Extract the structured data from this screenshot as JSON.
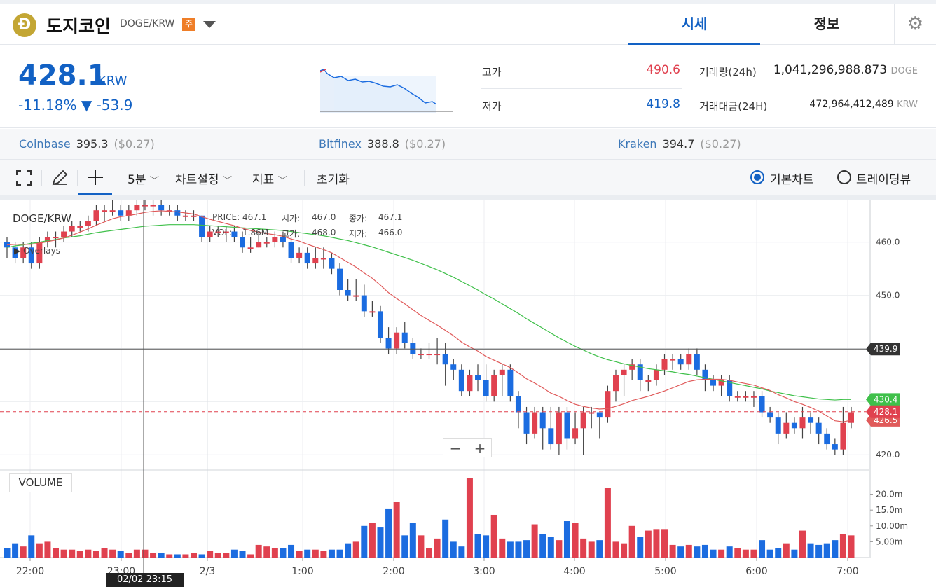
{
  "header": {
    "coin_logo": "Ð",
    "coin_name": "도지코인",
    "pair": "DOGE/KRW",
    "badge": "주",
    "tabs": [
      {
        "label": "시세"
      },
      {
        "label": "정보"
      }
    ],
    "gear_icon": "gear-icon"
  },
  "price": {
    "current": "428.1",
    "unit": "KRW",
    "change_pct": "-11.18%",
    "change_arrow": "▼",
    "change_abs": "-53.9",
    "high_label": "고가",
    "high_value": "490.6",
    "low_label": "저가",
    "low_value": "419.8",
    "volume_label": "거래량(24h)",
    "volume_value": "1,041,296,988.873",
    "volume_unit": "DOGE",
    "amount_label": "거래대금(24H)",
    "amount_value": "472,964,412,489",
    "amount_unit": "KRW"
  },
  "exchanges": [
    {
      "name": "Coinbase",
      "price": "395.3",
      "usd": "($0.27)"
    },
    {
      "name": "Bitfinex",
      "price": "388.8",
      "usd": "($0.27)"
    },
    {
      "name": "Kraken",
      "price": "394.7",
      "usd": "($0.27)"
    }
  ],
  "toolbar": {
    "interval": "5분",
    "chart_settings": "차트설정",
    "indicators": "지표",
    "reset": "초기화",
    "basic_chart": "기본차트",
    "tradingview": "트레이딩뷰"
  },
  "chart": {
    "symbol": "DOGE/KRW",
    "overlays": "Overlays",
    "legend": {
      "price_label": "PRICE:",
      "price": "467.1",
      "open_label": "시가:",
      "open": "467.0",
      "close_label": "종가:",
      "close": "467.1",
      "vol_label": "VOL:",
      "vol": "1.86M",
      "high_label": "고가:",
      "high": "468.0",
      "low_label": "저가:",
      "low": "466.0"
    },
    "zoom_out": "−",
    "zoom_in": "+",
    "volume_label": "VOLUME",
    "crosshair_time": "02/02 23:15",
    "colors": {
      "up": "#e0414f",
      "down": "#1b6ce0",
      "ma_short": "#e05a5a",
      "ma_long": "#3fc04a"
    }
  },
  "chart_data": {
    "type": "candlestick",
    "x_ticks": [
      "22:00",
      "23:00",
      "2/3",
      "1:00",
      "2:00",
      "3:00",
      "4:00",
      "5:00",
      "6:00",
      "7:00"
    ],
    "y_ticks": [
      "460.0",
      "450.0",
      "439.9",
      "430.4",
      "428.1",
      "426.5",
      "420.0"
    ],
    "volume_ticks": [
      "20.0m",
      "15.0m",
      "10.00m",
      "5.00m"
    ],
    "price_range": [
      417,
      468
    ],
    "price_labels": {
      "crosshair": "439.9",
      "ma_long": "430.4",
      "current": "428.1",
      "ma_short": "426.5"
    },
    "candles": [
      [
        460,
        459,
        461,
        457
      ],
      [
        459,
        457,
        460,
        456
      ],
      [
        457,
        459,
        460,
        456
      ],
      [
        459,
        456,
        460,
        455
      ],
      [
        456,
        460,
        461,
        455
      ],
      [
        460,
        461,
        462,
        459
      ],
      [
        461,
        461,
        462,
        459
      ],
      [
        461,
        462,
        463,
        460
      ],
      [
        462,
        463,
        464,
        461
      ],
      [
        463,
        463,
        464,
        462
      ],
      [
        463,
        464,
        465,
        462
      ],
      [
        464,
        466,
        467,
        463
      ],
      [
        466,
        466,
        467,
        464
      ],
      [
        466,
        466,
        468,
        465
      ],
      [
        466,
        465,
        467,
        464
      ],
      [
        465,
        466,
        467,
        464
      ],
      [
        466,
        467,
        468,
        465
      ],
      [
        467,
        467,
        468,
        466
      ],
      [
        467,
        467,
        468,
        465
      ],
      [
        467,
        466,
        468,
        465
      ],
      [
        466,
        466,
        467,
        465
      ],
      [
        466,
        465,
        467,
        464
      ],
      [
        465,
        465,
        466,
        464
      ],
      [
        465,
        465,
        466,
        464
      ],
      [
        465,
        461,
        465,
        460
      ],
      [
        461,
        462,
        463,
        460
      ],
      [
        462,
        462,
        463,
        461
      ],
      [
        462,
        462,
        463,
        460
      ],
      [
        462,
        461,
        463,
        460
      ],
      [
        461,
        459,
        462,
        458
      ],
      [
        459,
        459,
        461,
        458
      ],
      [
        459,
        460,
        462,
        459
      ],
      [
        460,
        460,
        461,
        459
      ],
      [
        460,
        461,
        462,
        459
      ],
      [
        461,
        460,
        462,
        459
      ],
      [
        460,
        457,
        461,
        456
      ],
      [
        457,
        458,
        459,
        456
      ],
      [
        458,
        456,
        459,
        455
      ],
      [
        456,
        457,
        459,
        455
      ],
      [
        457,
        457,
        459,
        455
      ],
      [
        457,
        455,
        458,
        454
      ],
      [
        455,
        451,
        456,
        450
      ],
      [
        451,
        450,
        453,
        449
      ],
      [
        450,
        450,
        453,
        449
      ],
      [
        450,
        447,
        452,
        446
      ],
      [
        447,
        447,
        449,
        446
      ],
      [
        447,
        442,
        448,
        441
      ],
      [
        442,
        440,
        444,
        439
      ],
      [
        440,
        443,
        444,
        439
      ],
      [
        443,
        441,
        445,
        440
      ],
      [
        441,
        439,
        442,
        438
      ],
      [
        439,
        439,
        440,
        438
      ],
      [
        439,
        439,
        441,
        438
      ],
      [
        439,
        439,
        442,
        437
      ],
      [
        439,
        437,
        441,
        433
      ],
      [
        437,
        436,
        438,
        434
      ],
      [
        436,
        432,
        437,
        431
      ],
      [
        432,
        435,
        436,
        431
      ],
      [
        435,
        434,
        437,
        432
      ],
      [
        434,
        431,
        437,
        430
      ],
      [
        431,
        435,
        436,
        430
      ],
      [
        435,
        436,
        437,
        431
      ],
      [
        436,
        431,
        437,
        430
      ],
      [
        431,
        428,
        432,
        425
      ],
      [
        428,
        424,
        429,
        422
      ],
      [
        424,
        428,
        429,
        423
      ],
      [
        428,
        425,
        429,
        421
      ],
      [
        425,
        422,
        429,
        421
      ],
      [
        422,
        428,
        429,
        420
      ],
      [
        428,
        423,
        429,
        421
      ],
      [
        423,
        425,
        428,
        422
      ],
      [
        425,
        428,
        429,
        420
      ],
      [
        428,
        428,
        429,
        425
      ],
      [
        428,
        427,
        428,
        423
      ],
      [
        427,
        432,
        433,
        426
      ],
      [
        432,
        435,
        436,
        430
      ],
      [
        435,
        436,
        437,
        431
      ],
      [
        436,
        437,
        438,
        434
      ],
      [
        437,
        434,
        438,
        432
      ],
      [
        434,
        434,
        435,
        432
      ],
      [
        434,
        436,
        437,
        433
      ],
      [
        436,
        438,
        439,
        435
      ],
      [
        438,
        438,
        439,
        436
      ],
      [
        438,
        437,
        439,
        436
      ],
      [
        437,
        439,
        440,
        436
      ],
      [
        439,
        436,
        440,
        435
      ],
      [
        436,
        434,
        437,
        432
      ],
      [
        434,
        433,
        435,
        432
      ],
      [
        433,
        434,
        435,
        431
      ],
      [
        434,
        431,
        435,
        430
      ],
      [
        431,
        431,
        432,
        430
      ],
      [
        431,
        431,
        432,
        430
      ],
      [
        431,
        431,
        432,
        429
      ],
      [
        431,
        428,
        432,
        427
      ],
      [
        428,
        427,
        429,
        426
      ],
      [
        427,
        424,
        428,
        422
      ],
      [
        424,
        426,
        428,
        423
      ],
      [
        426,
        425,
        427,
        424
      ],
      [
        425,
        427,
        429,
        423
      ],
      [
        427,
        426,
        428,
        424
      ],
      [
        426,
        424,
        427,
        422
      ],
      [
        424,
        422,
        425,
        421
      ],
      [
        422,
        421,
        423,
        420
      ],
      [
        421,
        426,
        429,
        420
      ],
      [
        426,
        428,
        429,
        425
      ]
    ],
    "ma_short": [
      459.5,
      459.6,
      459.6,
      459.6,
      459.8,
      460.1,
      460.4,
      460.8,
      461.3,
      461.9,
      462.5,
      463.2,
      463.8,
      464.4,
      464.8,
      465.0,
      465.3,
      465.6,
      465.8,
      465.9,
      465.8,
      465.7,
      465.5,
      465.3,
      464.8,
      464.3,
      463.9,
      463.5,
      463.1,
      462.6,
      462.2,
      461.9,
      461.6,
      461.4,
      461.1,
      460.6,
      460.2,
      459.6,
      459.1,
      458.6,
      458.0,
      457.1,
      456.2,
      455.3,
      454.2,
      453.2,
      451.9,
      450.5,
      449.4,
      448.4,
      447.3,
      446.2,
      445.3,
      444.4,
      443.4,
      442.4,
      441.2,
      440.3,
      439.5,
      438.5,
      437.8,
      437.1,
      436.4,
      435.4,
      434.3,
      433.5,
      432.6,
      431.6,
      431.0,
      430.2,
      429.5,
      429.1,
      428.8,
      428.6,
      428.7,
      429.1,
      429.6,
      430.2,
      430.6,
      431.0,
      431.5,
      432.0,
      432.6,
      433.2,
      433.8,
      434.1,
      434.2,
      434.2,
      434.2,
      434.0,
      433.7,
      433.4,
      433.1,
      432.6,
      432.1,
      431.3,
      430.7,
      430.0,
      429.5,
      428.9,
      428.2,
      427.3,
      426.4,
      426.2,
      426.5
    ],
    "ma_long": [
      459.0,
      459.3,
      459.5,
      459.8,
      460.0,
      460.3,
      460.5,
      460.8,
      461.0,
      461.2,
      461.5,
      461.8,
      462.0,
      462.2,
      462.4,
      462.6,
      462.8,
      463.0,
      463.1,
      463.2,
      463.3,
      463.3,
      463.3,
      463.3,
      463.2,
      463.1,
      463.0,
      462.9,
      462.8,
      462.7,
      462.6,
      462.5,
      462.4,
      462.3,
      462.2,
      462.0,
      461.8,
      461.6,
      461.4,
      461.2,
      460.9,
      460.6,
      460.3,
      459.9,
      459.5,
      459.1,
      458.6,
      458.1,
      457.6,
      457.1,
      456.6,
      456.0,
      455.4,
      454.8,
      454.1,
      453.4,
      452.6,
      451.8,
      451.0,
      450.1,
      449.3,
      448.4,
      447.5,
      446.6,
      445.6,
      444.7,
      443.8,
      442.9,
      442.0,
      441.2,
      440.4,
      439.7,
      439.0,
      438.4,
      437.9,
      437.5,
      437.1,
      436.8,
      436.5,
      436.2,
      436.0,
      435.8,
      435.6,
      435.3,
      435.1,
      434.8,
      434.5,
      434.2,
      433.9,
      433.6,
      433.3,
      433.0,
      432.7,
      432.4,
      432.0,
      431.7,
      431.4,
      431.1,
      430.9,
      430.7,
      430.5,
      430.4,
      430.3,
      430.4,
      430.4
    ],
    "volumes": [
      3.0,
      4.5,
      3.5,
      7.0,
      4.5,
      5.0,
      3.0,
      2.5,
      2.5,
      2.0,
      2.5,
      2.0,
      3.0,
      2.5,
      2.0,
      1.5,
      2.5,
      2.5,
      1.5,
      1.5,
      1.0,
      1.0,
      1.0,
      1.5,
      1.0,
      2.0,
      1.5,
      1.5,
      2.5,
      2.0,
      1.0,
      4.0,
      3.5,
      3.0,
      3.0,
      4.0,
      2.0,
      2.5,
      2.5,
      2.0,
      2.5,
      2.5,
      4.5,
      5.0,
      10.0,
      11.0,
      9.5,
      15.5,
      17.5,
      7.0,
      11.0,
      7.0,
      3.0,
      6.0,
      12.0,
      5.0,
      3.5,
      25.0,
      7.5,
      7.0,
      13.5,
      6.0,
      5.0,
      5.0,
      5.5,
      10.5,
      7.5,
      6.5,
      5.5,
      11.5,
      11.0,
      6.0,
      5.0,
      5.5,
      22.0,
      5.0,
      4.5,
      10.0,
      6.5,
      8.5,
      9.0,
      9.0,
      4.0,
      3.5,
      4.0,
      3.5,
      4.0,
      2.5,
      2.5,
      3.5,
      3.0,
      2.5,
      2.5,
      5.5,
      2.5,
      3.0,
      4.5,
      2.5,
      8.5,
      4.5,
      4.0,
      4.5,
      5.5,
      7.5,
      7.0
    ]
  }
}
